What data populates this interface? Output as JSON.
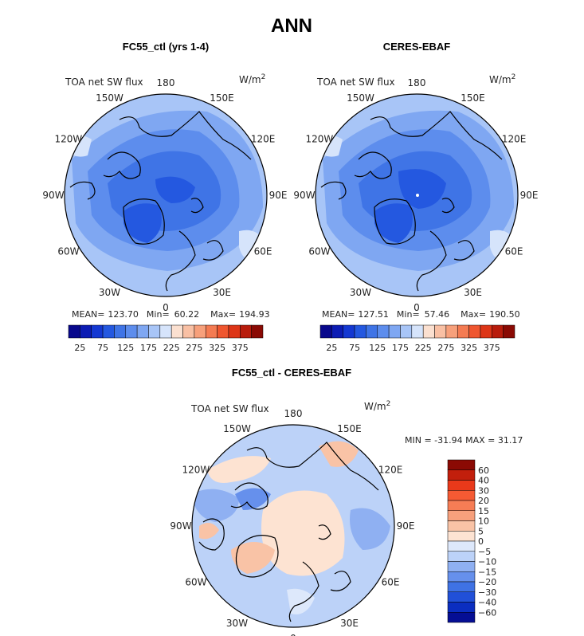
{
  "chart_data": {
    "type": "heatmap",
    "title": "ANN",
    "variable": "TOA net SW flux",
    "units": "W/m",
    "units_exp": "2",
    "longitude_labels": [
      "180",
      "150E",
      "120E",
      "90E",
      "60E",
      "30E",
      "0",
      "30W",
      "60W",
      "90W",
      "120W",
      "150W"
    ],
    "panels": [
      {
        "title": "FC55_ctl (yrs 1-4)",
        "stats": {
          "mean_label": "MEAN=",
          "mean": "123.70",
          "min_label": "Min=",
          "min": "60.22",
          "max_label": "Max=",
          "max": "194.93"
        },
        "colorbar": {
          "ticks": [
            "25",
            "75",
            "125",
            "175",
            "225",
            "275",
            "325",
            "375"
          ],
          "levels": [
            0,
            25,
            50,
            75,
            100,
            125,
            150,
            175,
            200,
            225,
            250,
            275,
            300,
            325,
            350,
            375,
            400
          ]
        }
      },
      {
        "title": "CERES-EBAF",
        "stats": {
          "mean_label": "MEAN=",
          "mean": "127.51",
          "min_label": "Min=",
          "min": "57.46",
          "max_label": "Max=",
          "max": "190.50"
        },
        "colorbar": {
          "ticks": [
            "25",
            "75",
            "125",
            "175",
            "225",
            "275",
            "325",
            "375"
          ],
          "levels": [
            0,
            25,
            50,
            75,
            100,
            125,
            150,
            175,
            200,
            225,
            250,
            275,
            300,
            325,
            350,
            375,
            400
          ]
        }
      },
      {
        "title": "FC55_ctl - CERES-EBAF",
        "stats_line": "MIN = -31.94 MAX =  31.17",
        "colorbar": {
          "ticks": [
            "60",
            "40",
            "30",
            "20",
            "15",
            "10",
            "5",
            "0",
            "−5",
            "−10",
            "−15",
            "−20",
            "−30",
            "−40",
            "−60"
          ]
        }
      }
    ]
  },
  "colors": {
    "seq": [
      "#08088c",
      "#0c1cb4",
      "#1438d2",
      "#2458e0",
      "#3f74e6",
      "#5d8ded",
      "#7fa7f2",
      "#a8c5f7",
      "#d6e4fb",
      "#fbe0d0",
      "#f9c0a4",
      "#f7a07b",
      "#f47b52",
      "#ef562f",
      "#dd3517",
      "#b81c0c",
      "#8a0a04"
    ],
    "div": [
      "#8b0a04",
      "#c21f0c",
      "#e9391a",
      "#f55a33",
      "#f67d55",
      "#f7a07c",
      "#f9c3a6",
      "#fde3d2",
      "#dde8fb",
      "#bcd2f8",
      "#8fb0f2",
      "#6690ec",
      "#3f72e4",
      "#2150d8",
      "#0b2ec0",
      "#050e94"
    ]
  }
}
